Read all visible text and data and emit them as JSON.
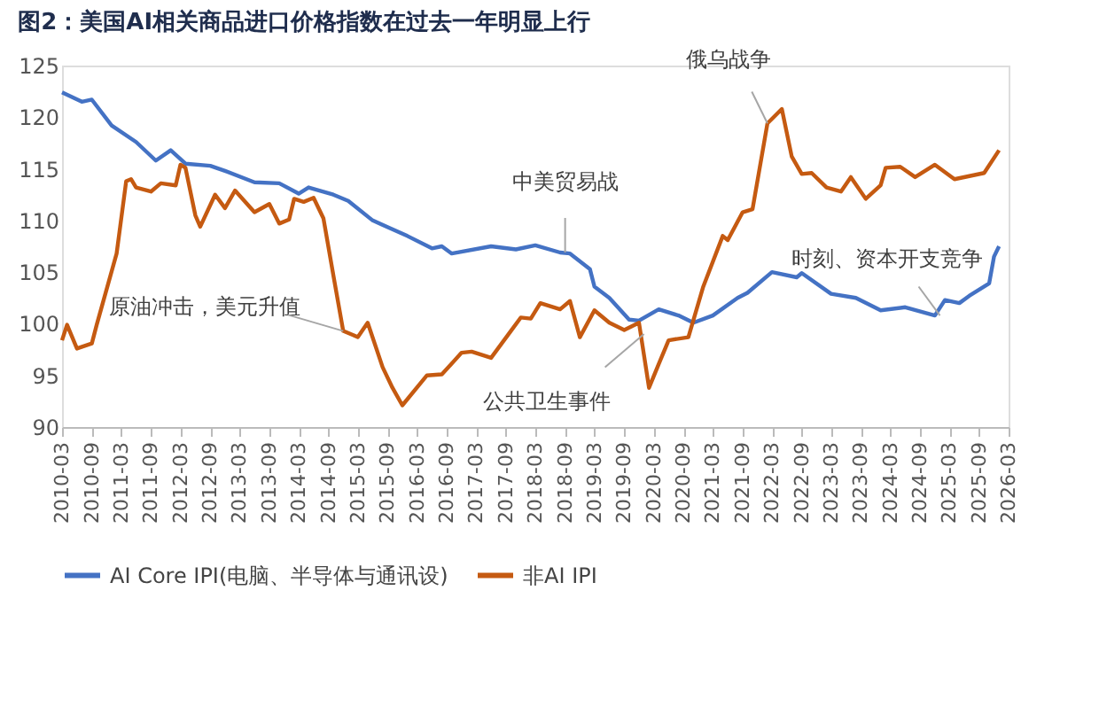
{
  "chart_data": {
    "type": "line",
    "title": "图2：美国AI相关商品进口价格指数在过去一年明显上行",
    "xlim": [
      "2010-03",
      "2026-03"
    ],
    "xticks": [
      "2010-03",
      "2010-09",
      "2011-03",
      "2011-09",
      "2012-03",
      "2012-09",
      "2013-03",
      "2013-09",
      "2014-03",
      "2014-09",
      "2015-03",
      "2015-09",
      "2016-03",
      "2016-09",
      "2017-03",
      "2017-09",
      "2018-03",
      "2018-09",
      "2019-03",
      "2019-09",
      "2020-03",
      "2020-09",
      "2021-03",
      "2021-09",
      "2022-03",
      "2022-09",
      "2023-03",
      "2023-09",
      "2024-03",
      "2024-09",
      "2025-03",
      "2025-09",
      "2026-03"
    ],
    "ylim": [
      90,
      125
    ],
    "yticks": [
      90,
      95,
      100,
      105,
      110,
      115,
      120,
      125
    ],
    "grid": false,
    "legend": "bottom",
    "line_style": "solid",
    "marker": "none",
    "series": [
      {
        "name": "AI Core IPI(电脑、半导体与通讯设)",
        "color": "#4472c4",
        "x": [
          "2010-03",
          "2010-07",
          "2010-09",
          "2011-01",
          "2011-06",
          "2011-10",
          "2012-01",
          "2012-04",
          "2012-09",
          "2012-12",
          "2013-06",
          "2013-11",
          "2014-03",
          "2014-05",
          "2014-10",
          "2015-01",
          "2015-06",
          "2016-01",
          "2016-06",
          "2016-08",
          "2016-10",
          "2017-06",
          "2017-11",
          "2018-03",
          "2018-08",
          "2018-10",
          "2019-02",
          "2019-03",
          "2019-06",
          "2019-10",
          "2019-12",
          "2020-04",
          "2020-08",
          "2020-11",
          "2021-03",
          "2021-08",
          "2021-10",
          "2022-03",
          "2022-08",
          "2022-09",
          "2023-03",
          "2023-08",
          "2024-01",
          "2024-06",
          "2024-12",
          "2025-02",
          "2025-05",
          "2025-07",
          "2025-11",
          "2025-12",
          "2026-01"
        ],
        "values": [
          122.4,
          121.5,
          121.7,
          119.2,
          117.6,
          115.8,
          116.8,
          115.5,
          115.3,
          114.8,
          113.7,
          113.6,
          112.6,
          113.2,
          112.5,
          111.9,
          110.0,
          108.5,
          107.3,
          107.5,
          106.8,
          107.5,
          107.2,
          107.6,
          106.9,
          106.8,
          105.3,
          103.6,
          102.5,
          100.4,
          100.3,
          101.4,
          100.8,
          100.1,
          100.8,
          102.5,
          103.0,
          105.0,
          104.5,
          104.9,
          102.9,
          102.5,
          101.3,
          101.6,
          100.8,
          102.3,
          102.0,
          102.7,
          103.9,
          106.5,
          107.5
        ]
      },
      {
        "name": "非AI IPI",
        "color": "#c55a11",
        "x": [
          "2010-03",
          "2010-04",
          "2010-06",
          "2010-09",
          "2010-10",
          "2011-02",
          "2011-04",
          "2011-05",
          "2011-06",
          "2011-09",
          "2011-11",
          "2012-02",
          "2012-03",
          "2012-04",
          "2012-06",
          "2012-07",
          "2012-10",
          "2012-12",
          "2013-02",
          "2013-06",
          "2013-09",
          "2013-11",
          "2014-01",
          "2014-02",
          "2014-04",
          "2014-06",
          "2014-08",
          "2014-10",
          "2014-12",
          "2015-02",
          "2015-03",
          "2015-05",
          "2015-08",
          "2015-10",
          "2015-12",
          "2016-05",
          "2016-08",
          "2016-12",
          "2017-02",
          "2017-06",
          "2017-10",
          "2017-12",
          "2018-02",
          "2018-04",
          "2018-08",
          "2018-10",
          "2018-12",
          "2019-03",
          "2019-06",
          "2019-09",
          "2019-12",
          "2020-02",
          "2020-04",
          "2020-06",
          "2020-10",
          "2021-01",
          "2021-05",
          "2021-06",
          "2021-09",
          "2021-11",
          "2022-02",
          "2022-05",
          "2022-07",
          "2022-09",
          "2022-11",
          "2023-02",
          "2023-05",
          "2023-07",
          "2023-10",
          "2024-01",
          "2024-02",
          "2024-05",
          "2024-08",
          "2024-12",
          "2025-04",
          "2025-10",
          "2026-01"
        ],
        "values": [
          98.4,
          99.9,
          97.6,
          98.1,
          99.9,
          106.8,
          113.8,
          114.0,
          113.2,
          112.8,
          113.6,
          113.4,
          115.4,
          115.1,
          110.5,
          109.4,
          112.5,
          111.2,
          112.9,
          110.8,
          111.6,
          109.7,
          110.1,
          112.1,
          111.8,
          112.2,
          110.2,
          104.7,
          99.3,
          98.9,
          98.7,
          100.1,
          95.8,
          93.8,
          92.1,
          95.0,
          95.1,
          97.2,
          97.3,
          96.7,
          99.3,
          100.6,
          100.5,
          102.0,
          101.4,
          102.2,
          98.7,
          101.3,
          100.1,
          99.4,
          100.1,
          93.8,
          96.1,
          98.4,
          98.7,
          103.6,
          108.5,
          108.1,
          110.8,
          111.1,
          119.4,
          120.8,
          116.2,
          114.5,
          114.6,
          113.2,
          112.8,
          114.2,
          112.1,
          113.4,
          115.1,
          115.2,
          114.2,
          115.4,
          114.0,
          114.6,
          116.8
        ]
      }
    ],
    "annotations": [
      {
        "text": "原油冲击，美元升值",
        "x": "2014-12",
        "y": 99.3
      },
      {
        "text": "中美贸易战",
        "x": "2018-09",
        "y": 106.9
      },
      {
        "text": "公共卫生事件",
        "x": "2020-01",
        "y": 99.0
      },
      {
        "text": "俄乌战争",
        "x": "2022-02",
        "y": 119.4
      },
      {
        "text": "时刻、资本开支竞争",
        "x": "2025-01",
        "y": 100.8
      }
    ]
  }
}
